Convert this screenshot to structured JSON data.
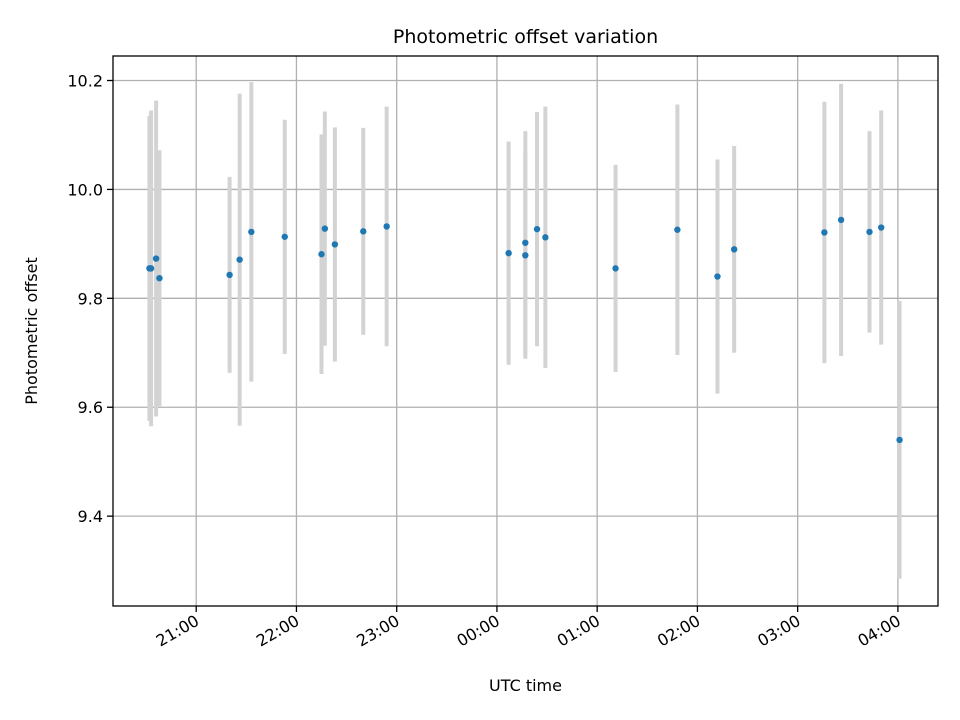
{
  "chart_data": {
    "type": "scatter",
    "title": "Photometric offset variation",
    "xlabel": "UTC time",
    "ylabel": "Photometric offset",
    "x_axis": {
      "unit": "hours since 20:00 UTC",
      "range_hours": [
        0.17,
        8.4
      ],
      "ticks": [
        {
          "value": 1,
          "label": "21:00"
        },
        {
          "value": 2,
          "label": "22:00"
        },
        {
          "value": 3,
          "label": "23:00"
        },
        {
          "value": 4,
          "label": "00:00"
        },
        {
          "value": 5,
          "label": "01:00"
        },
        {
          "value": 6,
          "label": "02:00"
        },
        {
          "value": 7,
          "label": "03:00"
        },
        {
          "value": 8,
          "label": "04:00"
        }
      ]
    },
    "y_axis": {
      "range": [
        9.235,
        10.245
      ],
      "ticks": [
        {
          "value": 9.4,
          "label": "9.4"
        },
        {
          "value": 9.6,
          "label": "9.6"
        },
        {
          "value": 9.8,
          "label": "9.8"
        },
        {
          "value": 10.0,
          "label": "10.0"
        },
        {
          "value": 10.2,
          "label": "10.2"
        }
      ]
    },
    "grid": true,
    "marker_color": "#1f77b4",
    "errorbar_color": "#d3d3d3",
    "points": [
      {
        "time": "20:32",
        "y": 9.855,
        "err": 0.28
      },
      {
        "time": "20:33",
        "y": 9.855,
        "err": 0.29
      },
      {
        "time": "20:36",
        "y": 9.873,
        "err": 0.29
      },
      {
        "time": "20:38",
        "y": 9.837,
        "err": 0.235
      },
      {
        "time": "21:20",
        "y": 9.843,
        "err": 0.18
      },
      {
        "time": "21:26",
        "y": 9.871,
        "err": 0.305
      },
      {
        "time": "21:33",
        "y": 9.922,
        "err": 0.275
      },
      {
        "time": "21:53",
        "y": 9.913,
        "err": 0.215
      },
      {
        "time": "22:15",
        "y": 9.881,
        "err": 0.22
      },
      {
        "time": "22:17",
        "y": 9.928,
        "err": 0.215
      },
      {
        "time": "22:23",
        "y": 9.899,
        "err": 0.215
      },
      {
        "time": "22:40",
        "y": 9.923,
        "err": 0.19
      },
      {
        "time": "22:54",
        "y": 9.932,
        "err": 0.22
      },
      {
        "time": "00:07",
        "y": 9.883,
        "err": 0.205
      },
      {
        "time": "00:17",
        "y": 9.879,
        "err": 0.19
      },
      {
        "time": "00:17",
        "y": 9.902,
        "err": 0.205
      },
      {
        "time": "00:24",
        "y": 9.927,
        "err": 0.215
      },
      {
        "time": "00:29",
        "y": 9.912,
        "err": 0.24
      },
      {
        "time": "01:11",
        "y": 9.855,
        "err": 0.19
      },
      {
        "time": "01:48",
        "y": 9.926,
        "err": 0.23
      },
      {
        "time": "02:12",
        "y": 9.84,
        "err": 0.215
      },
      {
        "time": "02:22",
        "y": 9.89,
        "err": 0.19
      },
      {
        "time": "03:16",
        "y": 9.921,
        "err": 0.24
      },
      {
        "time": "03:26",
        "y": 9.944,
        "err": 0.25
      },
      {
        "time": "03:43",
        "y": 9.922,
        "err": 0.185
      },
      {
        "time": "03:50",
        "y": 9.93,
        "err": 0.215
      },
      {
        "time": "04:01",
        "y": 9.54,
        "err": 0.255
      }
    ]
  }
}
